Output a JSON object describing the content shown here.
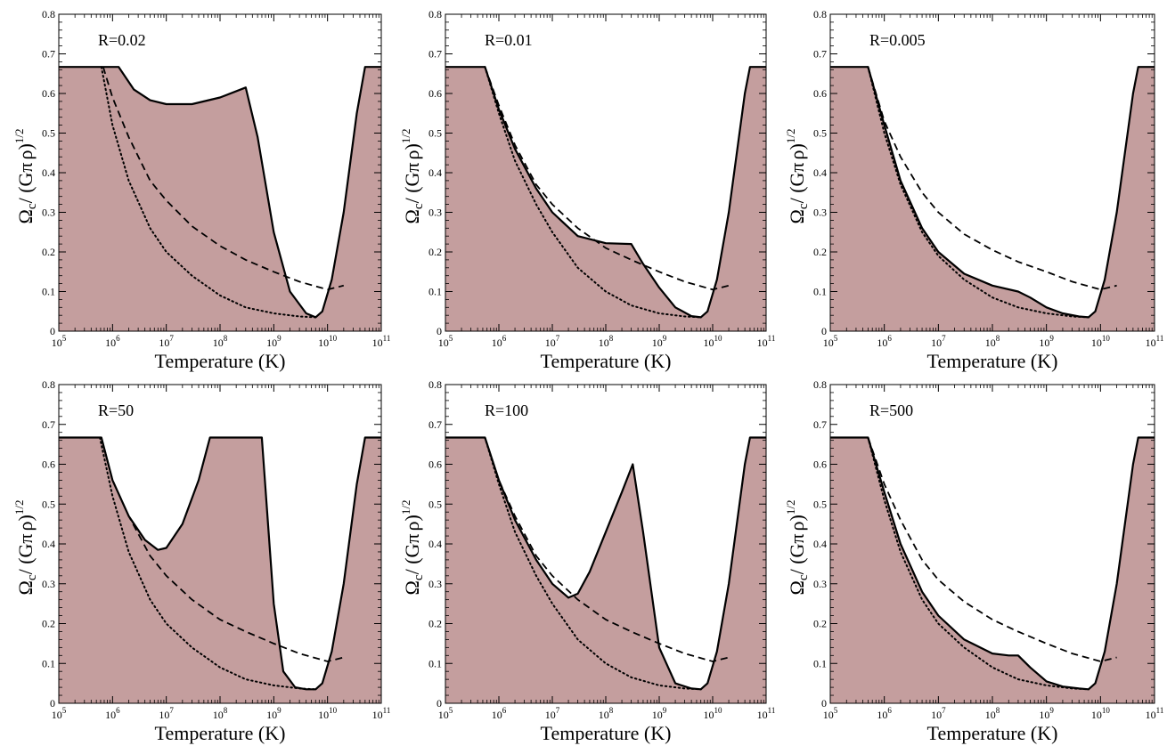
{
  "figure": {
    "shared_y_label": {
      "omega": "Ω",
      "c": "c",
      "paren": "/ (G",
      "pi": "π",
      "rho": "ρ",
      "close": ")",
      "exponent": "1/2"
    }
  },
  "colors": {
    "fill": "#c49e9e",
    "line": "#000000",
    "background": "#ffffff"
  },
  "chart_data": [
    {
      "type": "area",
      "label": "R=0.02",
      "xlabel": "Temperature (K)",
      "xscale": "log",
      "xlim": [
        100000,
        100000000000
      ],
      "ylim": [
        0,
        0.8
      ],
      "x_ticks": [
        "10^5",
        "10^6",
        "10^7",
        "10^8",
        "10^9",
        "10^10",
        "10^11"
      ],
      "y_ticks": [
        "0",
        "0.1",
        "0.2",
        "0.3",
        "0.4",
        "0.5",
        "0.6",
        "0.7",
        "0.8"
      ],
      "series": [
        {
          "style": "solid-filled",
          "x": [
            100000,
            1300000,
            2500000,
            5000000,
            10000000,
            30000000,
            100000000,
            300000000,
            500000000,
            1000000000,
            2000000000,
            4000000000,
            6000000000,
            8000000000,
            12000000000,
            20000000000,
            35000000000,
            50000000000,
            100000000000
          ],
          "y": [
            0.667,
            0.667,
            0.61,
            0.583,
            0.573,
            0.573,
            0.59,
            0.615,
            0.49,
            0.25,
            0.1,
            0.045,
            0.035,
            0.05,
            0.13,
            0.3,
            0.55,
            0.667,
            0.667
          ]
        },
        {
          "style": "dashed",
          "x": [
            670000,
            1000000,
            2000000,
            5000000,
            10000000,
            30000000,
            100000000,
            300000000,
            1000000000,
            3000000000,
            10000000000,
            20000000000
          ],
          "y": [
            0.667,
            0.59,
            0.49,
            0.38,
            0.33,
            0.265,
            0.215,
            0.18,
            0.15,
            0.125,
            0.105,
            0.115
          ]
        },
        {
          "style": "dotted",
          "x": [
            620000,
            1000000,
            2000000,
            5000000,
            10000000,
            30000000,
            100000000,
            300000000,
            1000000000,
            3000000000,
            6000000000
          ],
          "y": [
            0.667,
            0.52,
            0.38,
            0.26,
            0.2,
            0.14,
            0.09,
            0.06,
            0.045,
            0.037,
            0.035
          ]
        }
      ]
    },
    {
      "type": "area",
      "label": "R=0.01",
      "xlabel": "Temperature (K)",
      "xscale": "log",
      "xlim": [
        100000,
        100000000000
      ],
      "ylim": [
        0,
        0.8
      ],
      "x_ticks": [
        "10^5",
        "10^6",
        "10^7",
        "10^8",
        "10^9",
        "10^10",
        "10^11"
      ],
      "y_ticks": [
        "0",
        "0.1",
        "0.2",
        "0.3",
        "0.4",
        "0.5",
        "0.6",
        "0.7",
        "0.8"
      ],
      "series": [
        {
          "style": "solid-filled",
          "x": [
            100000,
            550000,
            1000000,
            2000000,
            5000000,
            10000000,
            30000000,
            100000000,
            300000000,
            500000000,
            1000000000,
            2000000000,
            4000000000,
            6000000000,
            8000000000,
            12000000000,
            20000000000,
            40000000000,
            50000000000,
            100000000000
          ],
          "y": [
            0.667,
            0.667,
            0.56,
            0.46,
            0.36,
            0.3,
            0.24,
            0.222,
            0.22,
            0.17,
            0.11,
            0.06,
            0.038,
            0.035,
            0.05,
            0.13,
            0.3,
            0.6,
            0.667,
            0.667
          ]
        },
        {
          "style": "dashed",
          "x": [
            550000,
            1000000,
            2000000,
            5000000,
            10000000,
            30000000,
            100000000,
            300000000,
            1000000000,
            3000000000,
            10000000000,
            20000000000
          ],
          "y": [
            0.667,
            0.57,
            0.47,
            0.37,
            0.32,
            0.26,
            0.21,
            0.18,
            0.15,
            0.125,
            0.105,
            0.115
          ]
        },
        {
          "style": "dotted",
          "x": [
            550000,
            1000000,
            2000000,
            5000000,
            10000000,
            30000000,
            100000000,
            300000000,
            1000000000,
            3000000000,
            6000000000
          ],
          "y": [
            0.667,
            0.55,
            0.43,
            0.32,
            0.25,
            0.16,
            0.1,
            0.065,
            0.045,
            0.037,
            0.035
          ]
        }
      ]
    },
    {
      "type": "area",
      "label": "R=0.005",
      "xlabel": "Temperature (K)",
      "xscale": "log",
      "xlim": [
        100000,
        100000000000
      ],
      "ylim": [
        0,
        0.8
      ],
      "x_ticks": [
        "10^5",
        "10^6",
        "10^7",
        "10^8",
        "10^9",
        "10^10",
        "10^11"
      ],
      "y_ticks": [
        "0",
        "0.1",
        "0.2",
        "0.3",
        "0.4",
        "0.5",
        "0.6",
        "0.7",
        "0.8"
      ],
      "series": [
        {
          "style": "solid-filled",
          "x": [
            100000,
            500000,
            1000000,
            2000000,
            5000000,
            10000000,
            30000000,
            100000000,
            300000000,
            500000000,
            1000000000,
            2000000000,
            4000000000,
            6000000000,
            8000000000,
            12000000000,
            20000000000,
            40000000000,
            50000000000,
            100000000000
          ],
          "y": [
            0.667,
            0.667,
            0.52,
            0.38,
            0.26,
            0.2,
            0.145,
            0.115,
            0.1,
            0.085,
            0.06,
            0.045,
            0.037,
            0.035,
            0.05,
            0.13,
            0.3,
            0.6,
            0.667,
            0.667
          ]
        },
        {
          "style": "dashed",
          "x": [
            500000,
            1000000,
            2000000,
            5000000,
            10000000,
            30000000,
            100000000,
            300000000,
            1000000000,
            3000000000,
            10000000000,
            20000000000
          ],
          "y": [
            0.667,
            0.53,
            0.44,
            0.35,
            0.3,
            0.245,
            0.205,
            0.175,
            0.15,
            0.125,
            0.105,
            0.115
          ]
        },
        {
          "style": "dotted",
          "x": [
            500000,
            1000000,
            2000000,
            5000000,
            10000000,
            30000000,
            100000000,
            300000000,
            1000000000,
            3000000000,
            6000000000
          ],
          "y": [
            0.667,
            0.5,
            0.37,
            0.25,
            0.19,
            0.13,
            0.085,
            0.06,
            0.045,
            0.037,
            0.035
          ]
        }
      ]
    },
    {
      "type": "area",
      "label": "R=50",
      "xlabel": "Temperature (K)",
      "xscale": "log",
      "xlim": [
        100000,
        100000000000
      ],
      "ylim": [
        0,
        0.8
      ],
      "x_ticks": [
        "10^5",
        "10^6",
        "10^7",
        "10^8",
        "10^9",
        "10^10",
        "10^11"
      ],
      "y_ticks": [
        "0",
        "0.1",
        "0.2",
        "0.3",
        "0.4",
        "0.5",
        "0.6",
        "0.7",
        "0.8"
      ],
      "series": [
        {
          "style": "solid-filled",
          "x": [
            100000,
            620000,
            1000000,
            2000000,
            4000000,
            7000000,
            10000000,
            20000000,
            40000000,
            65000000,
            100000000,
            300000000,
            600000000,
            1000000000,
            1500000000,
            2500000000,
            4000000000,
            6000000000,
            8000000000,
            12000000000,
            20000000000,
            35000000000,
            50000000000,
            100000000000
          ],
          "y": [
            0.667,
            0.667,
            0.56,
            0.47,
            0.41,
            0.385,
            0.39,
            0.45,
            0.56,
            0.667,
            0.667,
            0.667,
            0.667,
            0.25,
            0.08,
            0.04,
            0.035,
            0.035,
            0.05,
            0.13,
            0.3,
            0.55,
            0.667,
            0.667
          ]
        },
        {
          "style": "dashed",
          "x": [
            620000,
            1000000,
            2000000,
            5000000,
            10000000,
            30000000,
            100000000,
            300000000,
            1000000000,
            3000000000,
            10000000000,
            20000000000
          ],
          "y": [
            0.667,
            0.56,
            0.47,
            0.37,
            0.32,
            0.26,
            0.21,
            0.18,
            0.15,
            0.125,
            0.105,
            0.115
          ]
        },
        {
          "style": "dotted",
          "x": [
            580000,
            1000000,
            2000000,
            5000000,
            10000000,
            30000000,
            100000000,
            300000000,
            1000000000,
            3000000000,
            6000000000
          ],
          "y": [
            0.667,
            0.52,
            0.38,
            0.26,
            0.2,
            0.14,
            0.09,
            0.06,
            0.045,
            0.037,
            0.035
          ]
        }
      ]
    },
    {
      "type": "area",
      "label": "R=100",
      "xlabel": "Temperature (K)",
      "xscale": "log",
      "xlim": [
        100000,
        100000000000
      ],
      "ylim": [
        0,
        0.8
      ],
      "x_ticks": [
        "10^5",
        "10^6",
        "10^7",
        "10^8",
        "10^9",
        "10^10",
        "10^11"
      ],
      "y_ticks": [
        "0",
        "0.1",
        "0.2",
        "0.3",
        "0.4",
        "0.5",
        "0.6",
        "0.7",
        "0.8"
      ],
      "series": [
        {
          "style": "solid-filled",
          "x": [
            100000,
            550000,
            1000000,
            2000000,
            5000000,
            10000000,
            20000000,
            30000000,
            50000000,
            100000000,
            200000000,
            320000000,
            500000000,
            1000000000,
            2000000000,
            4000000000,
            6000000000,
            8000000000,
            12000000000,
            20000000000,
            40000000000,
            50000000000,
            100000000000
          ],
          "y": [
            0.667,
            0.667,
            0.56,
            0.46,
            0.36,
            0.3,
            0.265,
            0.275,
            0.33,
            0.43,
            0.53,
            0.6,
            0.43,
            0.14,
            0.05,
            0.037,
            0.035,
            0.05,
            0.13,
            0.3,
            0.6,
            0.667,
            0.667
          ]
        },
        {
          "style": "dashed",
          "x": [
            550000,
            1000000,
            2000000,
            5000000,
            10000000,
            30000000,
            100000000,
            300000000,
            1000000000,
            3000000000,
            10000000000,
            20000000000
          ],
          "y": [
            0.667,
            0.56,
            0.47,
            0.37,
            0.32,
            0.26,
            0.21,
            0.18,
            0.15,
            0.125,
            0.105,
            0.115
          ]
        },
        {
          "style": "dotted",
          "x": [
            550000,
            1000000,
            2000000,
            5000000,
            10000000,
            30000000,
            100000000,
            300000000,
            1000000000,
            3000000000,
            6000000000
          ],
          "y": [
            0.667,
            0.55,
            0.43,
            0.32,
            0.25,
            0.16,
            0.1,
            0.065,
            0.045,
            0.037,
            0.035
          ]
        }
      ]
    },
    {
      "type": "area",
      "label": "R=500",
      "xlabel": "Temperature (K)",
      "xscale": "log",
      "xlim": [
        100000,
        100000000000
      ],
      "ylim": [
        0,
        0.8
      ],
      "x_ticks": [
        "10^5",
        "10^6",
        "10^7",
        "10^8",
        "10^9",
        "10^10",
        "10^11"
      ],
      "y_ticks": [
        "0",
        "0.1",
        "0.2",
        "0.3",
        "0.4",
        "0.5",
        "0.6",
        "0.7",
        "0.8"
      ],
      "series": [
        {
          "style": "solid-filled",
          "x": [
            100000,
            500000,
            1000000,
            2000000,
            5000000,
            10000000,
            30000000,
            100000000,
            200000000,
            300000000,
            500000000,
            1000000000,
            2000000000,
            4000000000,
            6000000000,
            8000000000,
            12000000000,
            20000000000,
            40000000000,
            50000000000,
            100000000000
          ],
          "y": [
            0.667,
            0.667,
            0.53,
            0.4,
            0.28,
            0.22,
            0.16,
            0.125,
            0.12,
            0.12,
            0.09,
            0.055,
            0.042,
            0.037,
            0.035,
            0.05,
            0.13,
            0.3,
            0.6,
            0.667,
            0.667
          ]
        },
        {
          "style": "dashed",
          "x": [
            500000,
            1000000,
            2000000,
            5000000,
            10000000,
            30000000,
            100000000,
            300000000,
            1000000000,
            3000000000,
            10000000000,
            20000000000
          ],
          "y": [
            0.667,
            0.55,
            0.46,
            0.36,
            0.31,
            0.255,
            0.21,
            0.18,
            0.15,
            0.125,
            0.105,
            0.115
          ]
        },
        {
          "style": "dotted",
          "x": [
            500000,
            1000000,
            2000000,
            5000000,
            10000000,
            30000000,
            100000000,
            300000000,
            1000000000,
            3000000000,
            6000000000
          ],
          "y": [
            0.667,
            0.51,
            0.38,
            0.26,
            0.2,
            0.14,
            0.09,
            0.06,
            0.045,
            0.037,
            0.035
          ]
        }
      ]
    }
  ]
}
